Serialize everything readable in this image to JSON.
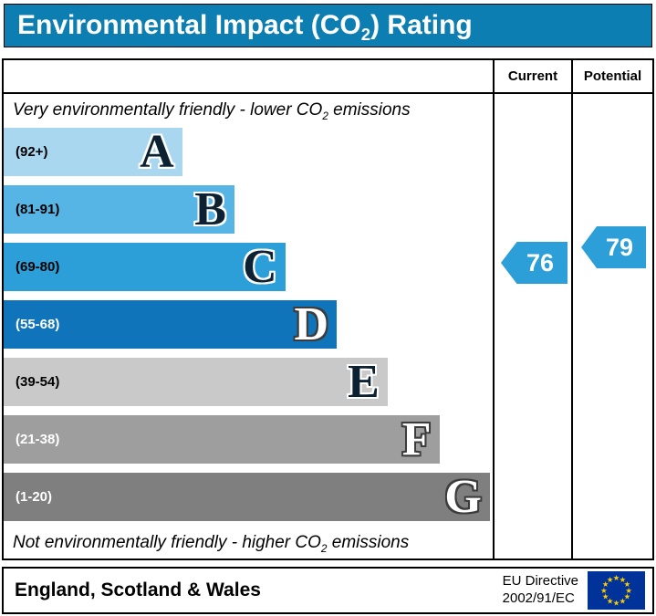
{
  "title": {
    "part1": "Environmental Impact (CO",
    "sub": "2",
    "part2": ") Rating"
  },
  "colors": {
    "header_bg": "#0d7eb1",
    "flag_blue": "#003399",
    "flag_star": "#ffcc00"
  },
  "columns": {
    "current": "Current",
    "potential": "Potential"
  },
  "top_note": {
    "part1": "Very environmentally friendly - lower CO",
    "sub": "2",
    "part2": " emissions"
  },
  "bottom_note": {
    "part1": "Not environmentally friendly - higher CO",
    "sub": "2",
    "part2": " emissions"
  },
  "bands": [
    {
      "letter": "A",
      "range": "(92+)",
      "color": "#a8d7ef",
      "width_pct": 36.5,
      "text": "dark"
    },
    {
      "letter": "B",
      "range": "(81-91)",
      "color": "#57b5e5",
      "width_pct": 47.2,
      "text": "dark"
    },
    {
      "letter": "C",
      "range": "(69-80)",
      "color": "#2d9fd8",
      "width_pct": 57.6,
      "text": "dark"
    },
    {
      "letter": "D",
      "range": "(55-68)",
      "color": "#0f74ba",
      "width_pct": 68.1,
      "text": "light"
    },
    {
      "letter": "E",
      "range": "(39-54)",
      "color": "#c9c9c9",
      "width_pct": 78.5,
      "text": "dark"
    },
    {
      "letter": "F",
      "range": "(21-38)",
      "color": "#9e9e9e",
      "width_pct": 89.1,
      "text": "light"
    },
    {
      "letter": "G",
      "range": "(1-20)",
      "color": "#7f7f7f",
      "width_pct": 99.4,
      "text": "light"
    }
  ],
  "current": {
    "value": "76",
    "color": "#2d9fd8"
  },
  "potential": {
    "value": "79",
    "color": "#2d9fd8"
  },
  "footer": {
    "region": "England, Scotland & Wales",
    "directive_line1": "EU Directive",
    "directive_line2": "2002/91/EC"
  },
  "chart_data": {
    "type": "bar",
    "title": "Environmental Impact (CO2) Rating",
    "categories": [
      "A (92+)",
      "B (81-91)",
      "C (69-80)",
      "D (55-68)",
      "E (39-54)",
      "F (21-38)",
      "G (1-20)"
    ],
    "values": [
      36.5,
      47.2,
      57.6,
      68.1,
      78.5,
      89.1,
      99.4
    ],
    "value_unit": "band bar length as % of chart width",
    "band_ranges": {
      "A": "92+",
      "B": "81-91",
      "C": "69-80",
      "D": "55-68",
      "E": "39-54",
      "F": "21-38",
      "G": "1-20"
    },
    "markers": [
      {
        "label": "Current",
        "value": 76,
        "band": "C"
      },
      {
        "label": "Potential",
        "value": 79,
        "band": "C"
      }
    ],
    "annotations": [
      "Very environmentally friendly - lower CO2 emissions",
      "Not environmentally friendly - higher CO2 emissions"
    ],
    "legend_position": "none",
    "grid": false
  }
}
